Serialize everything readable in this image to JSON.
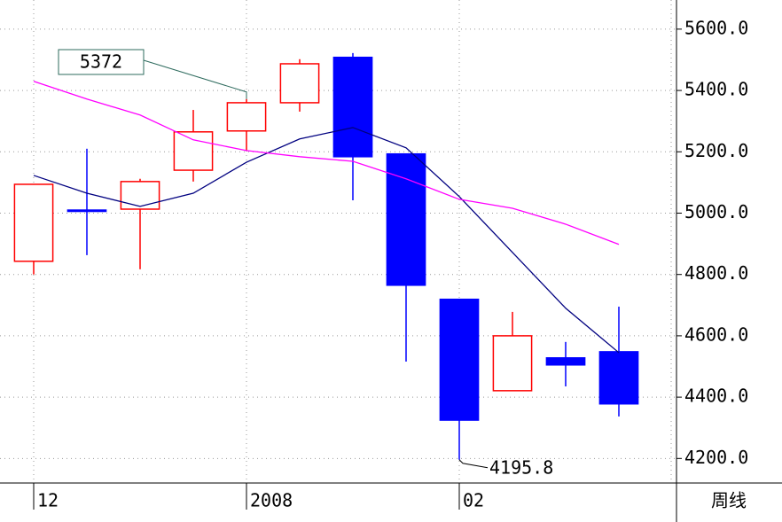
{
  "chart_data": {
    "type": "candlestick",
    "categories": [
      "12",
      null,
      null,
      null,
      "2008",
      null,
      null,
      null,
      "02",
      null,
      null,
      null
    ],
    "open": [
      4843,
      5010,
      5013,
      5140,
      5268,
      5360,
      5508,
      5193,
      4719,
      4421,
      4528,
      4548
    ],
    "high": [
      5094,
      5210,
      5112,
      5336.5,
      5372,
      5502,
      5522,
      5193,
      4719,
      4678,
      4580,
      4695
    ],
    "low": [
      4800,
      4863,
      4817,
      5103,
      5204,
      5331,
      5042,
      4516,
      4195.8,
      4421,
      4435,
      4337
    ],
    "close": [
      5094,
      5008,
      5103,
      5265,
      5360,
      5487,
      5184,
      4765,
      4325,
      4600,
      4505,
      4378
    ],
    "up_color": "#ff0000",
    "down_color": "#0000ff",
    "ma_lines": [
      {
        "color": "#000080",
        "values": [
          5123,
          5065,
          5022,
          5065,
          5166,
          5242,
          5279,
          5213,
          5054,
          4872,
          4690,
          4545
        ]
      },
      {
        "color": "#ff00ff",
        "values": [
          5430,
          5372,
          5320,
          5239,
          5204,
          5184,
          5169,
          5112,
          5045,
          5016,
          4964,
          4898
        ]
      }
    ],
    "ylim": [
      4120,
      5695
    ],
    "yticks": [
      {
        "value": 4200,
        "label": "4200.0"
      },
      {
        "value": 4400,
        "label": "4400.0"
      },
      {
        "value": 4600,
        "label": "4600.0"
      },
      {
        "value": 4800,
        "label": "4800.0"
      },
      {
        "value": 5000,
        "label": "5000.0"
      },
      {
        "value": 5200,
        "label": "5200.0"
      },
      {
        "value": 5400,
        "label": "5400.0"
      },
      {
        "value": 5600,
        "label": "5600.0"
      }
    ],
    "grid": true,
    "period_label": "周线"
  }
}
